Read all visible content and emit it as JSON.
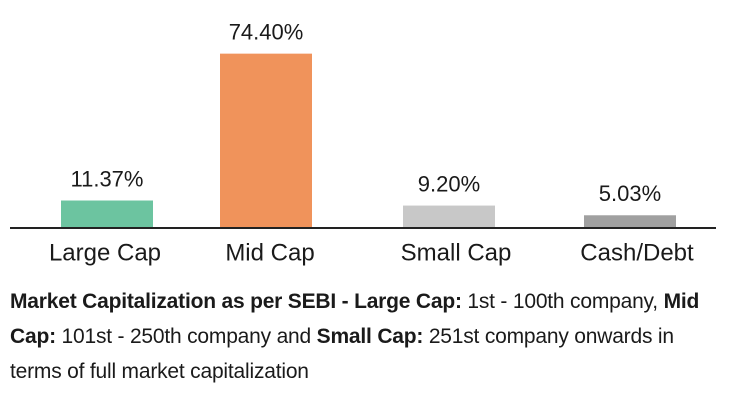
{
  "chart_data": {
    "type": "bar",
    "categories": [
      "Large Cap",
      "Mid Cap",
      "Small Cap",
      "Cash/Debt"
    ],
    "values": [
      11.37,
      74.4,
      9.2,
      5.03
    ],
    "value_labels": [
      "11.37%",
      "74.40%",
      "9.20%",
      "5.03%"
    ],
    "colors": [
      "#6cc4a0",
      "#f0935b",
      "#c8c8c8",
      "#a0a0a0"
    ]
  },
  "note": [
    {
      "text": "Market Capitalization as per SEBI - ",
      "bold": true
    },
    {
      "text": "Large Cap:",
      "bold": true
    },
    {
      "text": " 1st - 100th company, ",
      "bold": false
    },
    {
      "text": "Mid Cap:",
      "bold": true
    },
    {
      "text": " 101st - 250th company and ",
      "bold": false
    },
    {
      "text": "Small Cap:",
      "bold": true
    },
    {
      "text": " 251st company onwards in terms of full market capitalization",
      "bold": false
    }
  ]
}
